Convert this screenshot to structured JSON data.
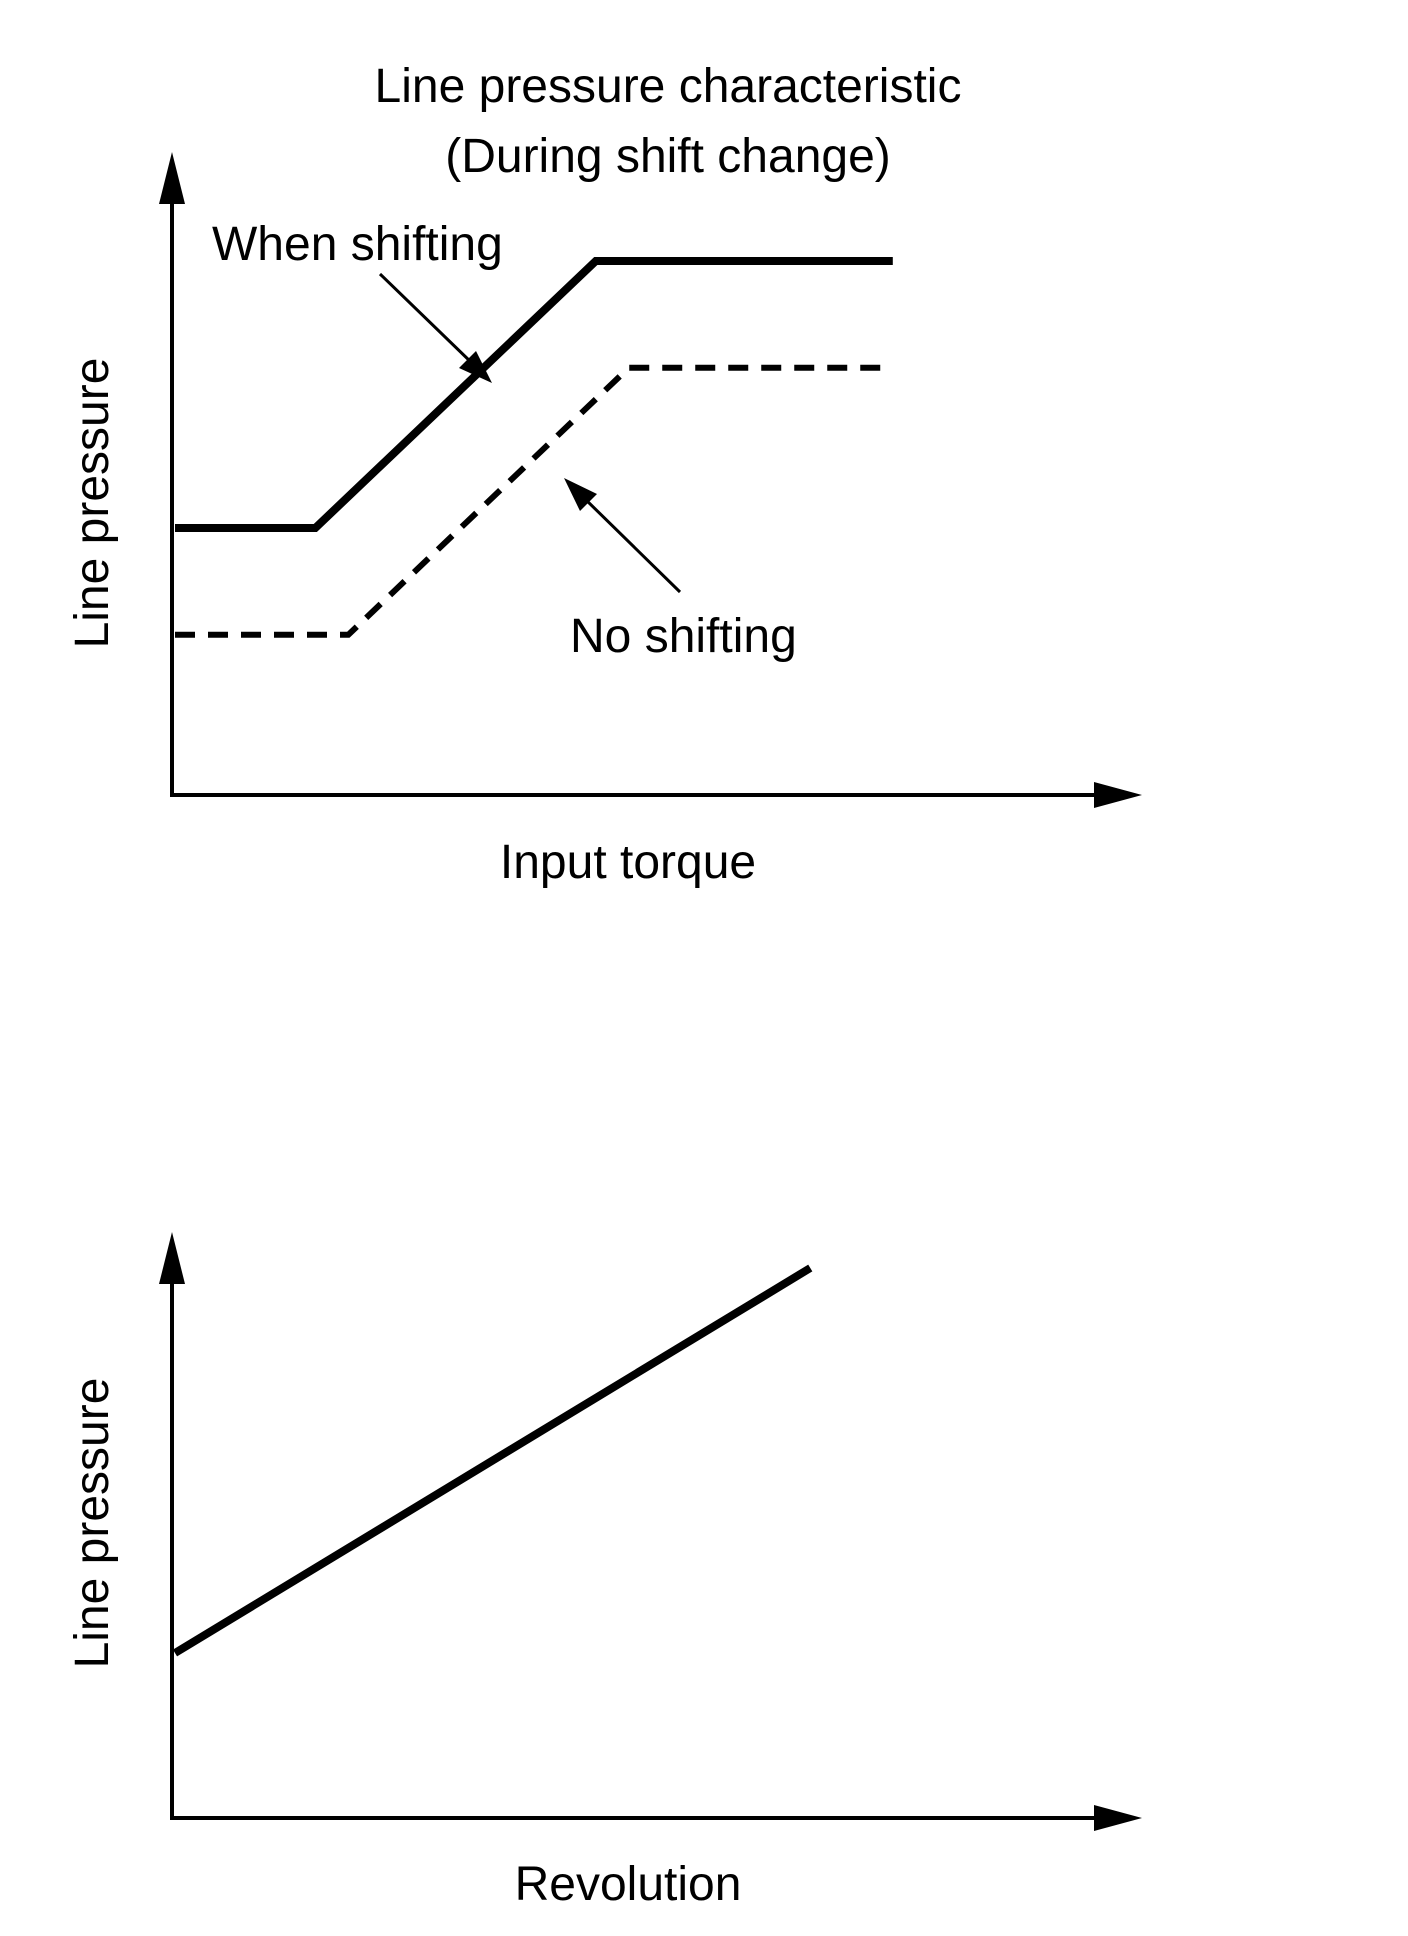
{
  "chart_data": [
    {
      "type": "line",
      "title": "Line pressure characteristic",
      "subtitle": "(During shift change)",
      "xlabel": "Input torque",
      "ylabel": "Line pressure",
      "xlim": [
        0,
        1
      ],
      "ylim": [
        0,
        1
      ],
      "grid": false,
      "series": [
        {
          "name": "When shifting",
          "style": "solid",
          "x": [
            0,
            0.17,
            0.51,
            0.87
          ],
          "y": [
            0.5,
            0.5,
            1.0,
            1.0
          ]
        },
        {
          "name": "No shifting",
          "style": "dashed",
          "x": [
            0,
            0.21,
            0.55,
            0.87
          ],
          "y": [
            0.3,
            0.3,
            0.8,
            0.8
          ]
        }
      ]
    },
    {
      "type": "line",
      "xlabel": "Revolution",
      "ylabel": "Line pressure",
      "xlim": [
        0,
        1
      ],
      "ylim": [
        0,
        1
      ],
      "grid": false,
      "series": [
        {
          "style": "solid",
          "x": [
            0,
            0.77
          ],
          "y": [
            0.3,
            1.0
          ]
        }
      ]
    }
  ]
}
